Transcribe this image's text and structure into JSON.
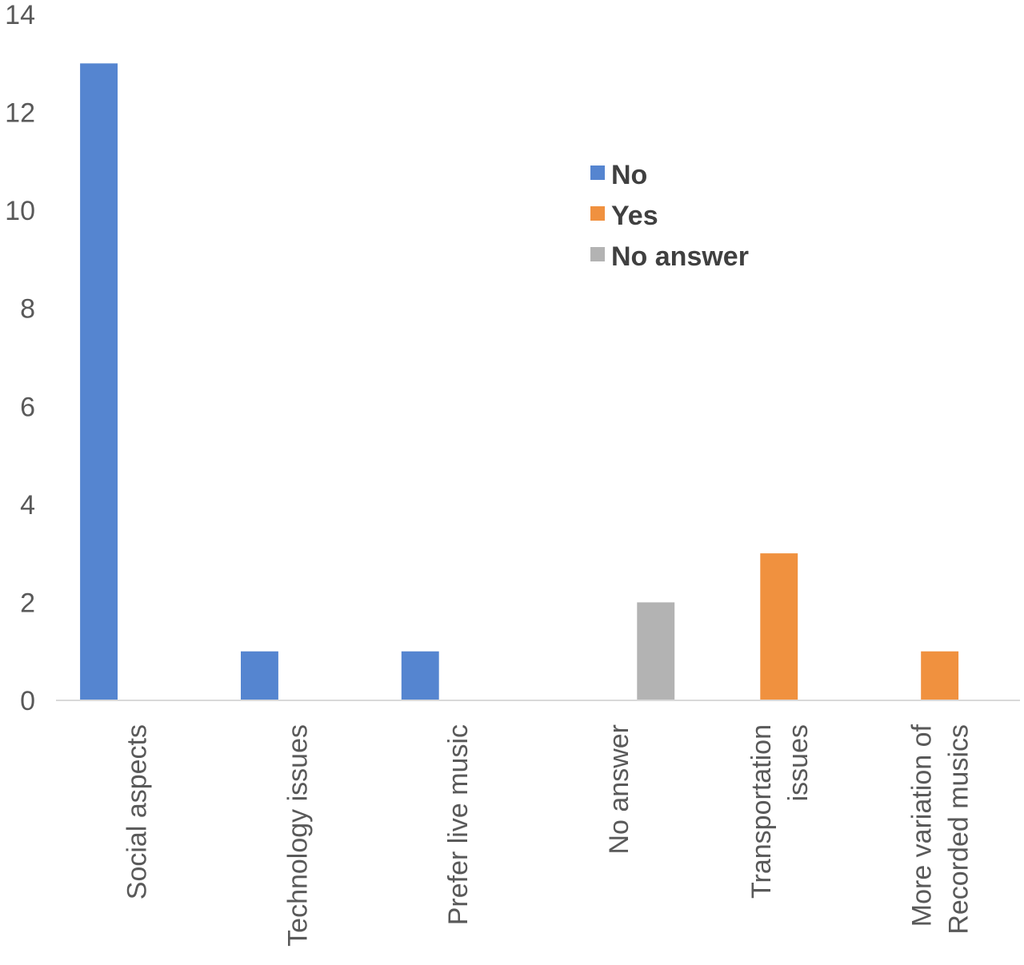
{
  "chart_data": {
    "type": "bar",
    "categories": [
      [
        "Social aspects"
      ],
      [
        "Technology issues"
      ],
      [
        "Prefer live music"
      ],
      [
        "No answer"
      ],
      [
        "Transportation",
        "issues"
      ],
      [
        "More variation of",
        "Recorded musics"
      ]
    ],
    "series": [
      {
        "name": "No",
        "color": "#5585D0",
        "values": [
          13,
          1,
          1,
          0,
          0,
          0
        ]
      },
      {
        "name": "Yes",
        "color": "#F0913F",
        "values": [
          0,
          0,
          0,
          0,
          3,
          1
        ]
      },
      {
        "name": "No answer",
        "color": "#B3B3B3",
        "values": [
          0,
          0,
          0,
          2,
          0,
          0
        ]
      }
    ],
    "yticks": [
      "0",
      "2",
      "4",
      "6",
      "8",
      "10",
      "12",
      "14"
    ],
    "ylim": [
      0,
      14
    ],
    "grid": false,
    "legend_position": "top-right",
    "title": "",
    "xlabel": "",
    "ylabel": ""
  }
}
